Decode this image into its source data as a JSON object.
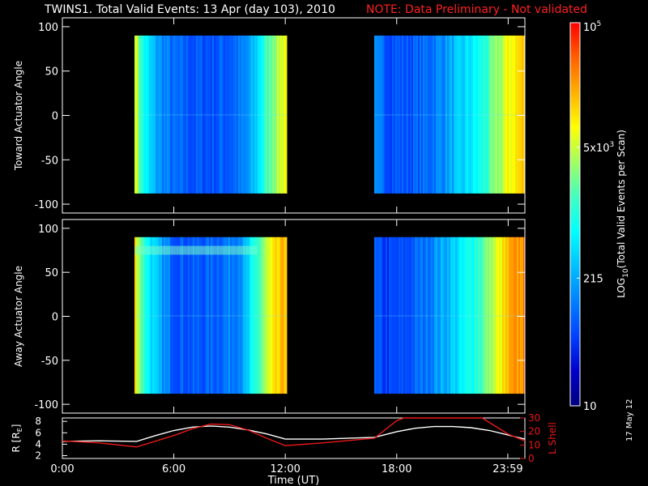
{
  "header": {
    "title": "TWINS1. Total Valid Events: 13 Apr (day 103), 2010",
    "note": "NOTE: Data Preliminary - Not validated"
  },
  "footer": {
    "date_stamp": "17 May 12"
  },
  "colors": {
    "background": "#000000",
    "axis": "#ffffff",
    "note": "#ff2020",
    "lshell": "#e81818",
    "radius": "#ffffff",
    "colormap": [
      "#000080",
      "#0000c8",
      "#0040ff",
      "#0080ff",
      "#00c0ff",
      "#00ffff",
      "#40ffc0",
      "#a0ff60",
      "#ffff00",
      "#ffb000",
      "#ff6000",
      "#ff0000"
    ]
  },
  "chart_data": [
    {
      "type": "heatmap",
      "name": "toward-panel",
      "ylabel": "Toward Actuator Angle",
      "ylim": [
        -110,
        110
      ],
      "yticks": [
        100,
        50,
        0,
        -50,
        -100
      ],
      "ytick_labels": [
        "100",
        "50",
        "0",
        "-50",
        "-100"
      ],
      "angle_range": [
        -88,
        90
      ],
      "xlim_hours": [
        0,
        24.9
      ],
      "data_intervals_hours": [
        [
          3.9,
          12.1
        ],
        [
          16.8,
          24.9
        ]
      ],
      "profile": [
        {
          "t": 3.9,
          "v": 0.72
        },
        {
          "t": 4.2,
          "v": 0.52
        },
        {
          "t": 4.6,
          "v": 0.4
        },
        {
          "t": 5.0,
          "v": 0.33
        },
        {
          "t": 5.5,
          "v": 0.27
        },
        {
          "t": 6.0,
          "v": 0.23
        },
        {
          "t": 7.0,
          "v": 0.21
        },
        {
          "t": 8.0,
          "v": 0.21
        },
        {
          "t": 9.0,
          "v": 0.23
        },
        {
          "t": 9.8,
          "v": 0.27
        },
        {
          "t": 10.3,
          "v": 0.36
        },
        {
          "t": 10.8,
          "v": 0.5
        },
        {
          "t": 11.3,
          "v": 0.62
        },
        {
          "t": 11.8,
          "v": 0.7
        },
        {
          "t": 12.1,
          "v": 0.74
        },
        {
          "t": 16.8,
          "v": 0.26
        },
        {
          "t": 17.5,
          "v": 0.22
        },
        {
          "t": 18.5,
          "v": 0.21
        },
        {
          "t": 19.5,
          "v": 0.24
        },
        {
          "t": 20.5,
          "v": 0.3
        },
        {
          "t": 21.5,
          "v": 0.38
        },
        {
          "t": 22.5,
          "v": 0.48
        },
        {
          "t": 23.3,
          "v": 0.6
        },
        {
          "t": 24.0,
          "v": 0.72
        },
        {
          "t": 24.9,
          "v": 0.8
        }
      ],
      "band_angle": 0
    },
    {
      "type": "heatmap",
      "name": "away-panel",
      "ylabel": "Away Actuator Angle",
      "ylim": [
        -110,
        110
      ],
      "yticks": [
        100,
        50,
        0,
        -50,
        -100
      ],
      "ytick_labels": [
        "100",
        "50",
        "0",
        "-50",
        "-100"
      ],
      "angle_range": [
        -88,
        90
      ],
      "xlim_hours": [
        0,
        24.9
      ],
      "data_intervals_hours": [
        [
          3.9,
          12.1
        ],
        [
          16.8,
          24.9
        ]
      ],
      "profile": [
        {
          "t": 3.9,
          "v": 0.76
        },
        {
          "t": 4.2,
          "v": 0.58
        },
        {
          "t": 4.6,
          "v": 0.45
        },
        {
          "t": 5.0,
          "v": 0.36
        },
        {
          "t": 5.5,
          "v": 0.28
        },
        {
          "t": 6.0,
          "v": 0.23
        },
        {
          "t": 7.0,
          "v": 0.21
        },
        {
          "t": 8.0,
          "v": 0.23
        },
        {
          "t": 9.0,
          "v": 0.27
        },
        {
          "t": 9.8,
          "v": 0.33
        },
        {
          "t": 10.3,
          "v": 0.48
        },
        {
          "t": 10.8,
          "v": 0.62
        },
        {
          "t": 11.3,
          "v": 0.72
        },
        {
          "t": 11.8,
          "v": 0.79
        },
        {
          "t": 12.1,
          "v": 0.82
        },
        {
          "t": 16.8,
          "v": 0.2
        },
        {
          "t": 17.5,
          "v": 0.17
        },
        {
          "t": 18.5,
          "v": 0.2
        },
        {
          "t": 19.5,
          "v": 0.26
        },
        {
          "t": 20.5,
          "v": 0.34
        },
        {
          "t": 21.5,
          "v": 0.43
        },
        {
          "t": 22.5,
          "v": 0.55
        },
        {
          "t": 23.3,
          "v": 0.68
        },
        {
          "t": 24.0,
          "v": 0.8
        },
        {
          "t": 24.9,
          "v": 0.88
        }
      ],
      "band_angle": 75,
      "band_hours": [
        3.9,
        10.5
      ]
    },
    {
      "type": "colorbar",
      "label": "LOG10(Total Valid Events per Scan)",
      "label_main": "LOG",
      "label_sub": "10",
      "label_rest": "(Total Valid Events per Scan)",
      "scale": "log",
      "range": [
        10,
        100000
      ],
      "ticks": [
        {
          "value": 100000,
          "base": "10",
          "exp": "5"
        },
        {
          "value": 5000,
          "base": "5x10",
          "exp": "3"
        },
        {
          "value": 215,
          "base": "215",
          "exp": ""
        },
        {
          "value": 10,
          "base": "10",
          "exp": ""
        }
      ]
    },
    {
      "type": "line",
      "name": "ephemeris-panel",
      "xlabel": "Time (UT)",
      "xticks_hours": [
        0,
        6,
        12,
        18,
        23.98
      ],
      "xtick_labels": [
        "0:00",
        "6:00",
        "12:00",
        "18:00",
        "23:59"
      ],
      "xlim_hours": [
        0,
        24.9
      ],
      "left_axis": {
        "label": "R [RE]",
        "label_main": "R [R",
        "label_sub": "E",
        "label_end": "]",
        "ylim": [
          1.5,
          8.6
        ],
        "ticks": [
          2,
          4,
          6,
          8
        ],
        "tick_labels": [
          "2",
          "4",
          "6",
          "8"
        ]
      },
      "right_axis": {
        "label": "L Shell",
        "ylim": [
          0,
          30
        ],
        "ticks": [
          0,
          10,
          20,
          30
        ],
        "tick_labels": [
          "0",
          "10",
          "20",
          "30"
        ]
      },
      "series": [
        {
          "name": "R",
          "axis": "left",
          "x": [
            0,
            2,
            4,
            5,
            6,
            7,
            8,
            9,
            10,
            11,
            12,
            14,
            16.8,
            18,
            19,
            20,
            21,
            22,
            23,
            24,
            24.9
          ],
          "values": [
            4.5,
            4.6,
            4.5,
            5.5,
            6.4,
            7.0,
            7.2,
            7.0,
            6.5,
            5.8,
            4.9,
            4.9,
            5.2,
            6.2,
            6.8,
            7.1,
            7.1,
            6.9,
            6.4,
            5.6,
            4.9
          ]
        },
        {
          "name": "L Shell",
          "axis": "right",
          "x": [
            0,
            2,
            4,
            6,
            7,
            8,
            9,
            10,
            11,
            12,
            14,
            16.8,
            18,
            18.4,
            20,
            22,
            22.6,
            23.3,
            24,
            24.9
          ],
          "values": [
            13,
            11.5,
            8.5,
            17,
            22,
            25.5,
            25,
            21,
            15,
            9.5,
            11.5,
            15,
            28,
            30,
            30,
            30,
            30,
            24,
            18,
            13
          ]
        }
      ]
    }
  ]
}
